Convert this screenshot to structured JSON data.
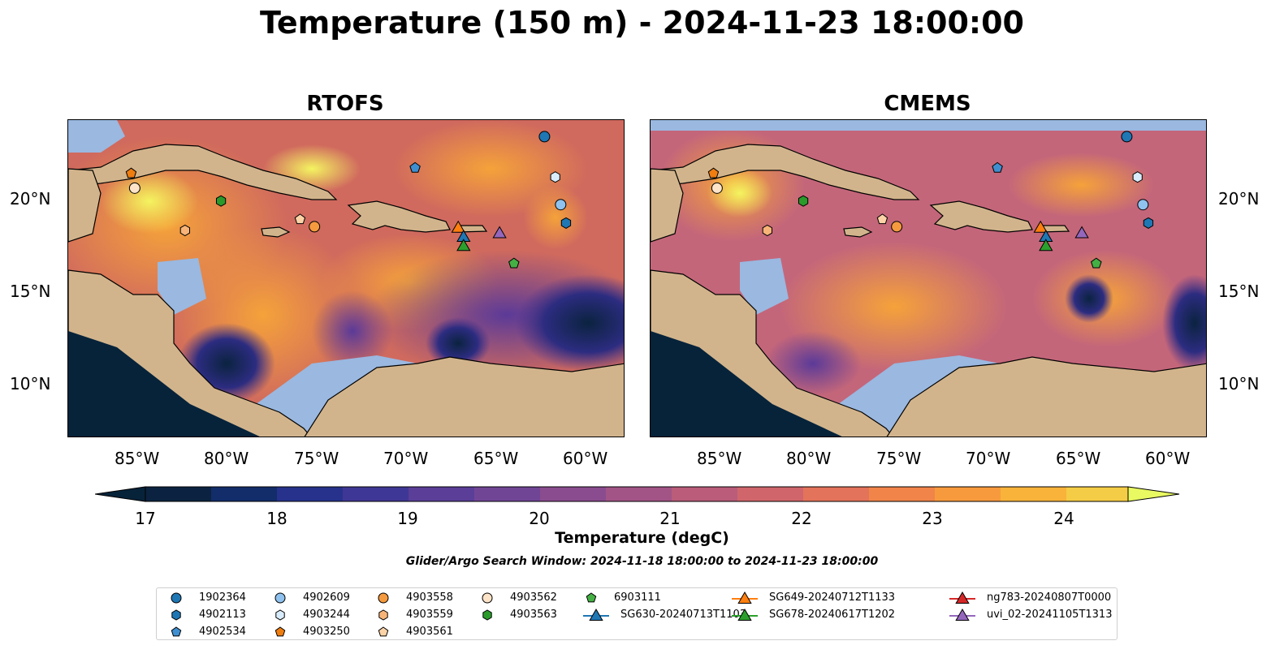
{
  "title": "Temperature (150 m) - 2024-11-23 18:00:00",
  "panels": [
    {
      "title": "RTOFS"
    },
    {
      "title": "CMEMS"
    }
  ],
  "axes": {
    "lon_labels": [
      "85°W",
      "80°W",
      "75°W",
      "70°W",
      "65°W",
      "60°W"
    ],
    "lat_labels": [
      "20°N",
      "15°N",
      "10°N"
    ]
  },
  "colorbar": {
    "label": "Temperature (degC)",
    "ticks": [
      "17",
      "18",
      "19",
      "20",
      "21",
      "22",
      "23",
      "24"
    ],
    "range": [
      16.5,
      24.5
    ],
    "extend": "both",
    "colormap": "thermal"
  },
  "search_window": "Glider/Argo Search Window: 2024-11-18 18:00:00 to 2024-11-23 18:00:00",
  "colors": {
    "land": "#d2b48c",
    "shallow": "#9ab8e0",
    "deep_cold": "#06233a"
  },
  "legend": {
    "items": [
      {
        "label": "1902364",
        "marker": "circle",
        "color": "#1f77b4"
      },
      {
        "label": "4902113",
        "marker": "hexagon",
        "color": "#1f77b4"
      },
      {
        "label": "4902534",
        "marker": "pentagon",
        "color": "#3f8fd0"
      },
      {
        "label": "4902609",
        "marker": "circle",
        "color": "#8fc2ee"
      },
      {
        "label": "4903244",
        "marker": "hexagon",
        "color": "#d8ecfb"
      },
      {
        "label": "4903250",
        "marker": "pentagon",
        "color": "#f07d10"
      },
      {
        "label": "4903558",
        "marker": "circle",
        "color": "#f59a3e"
      },
      {
        "label": "4903559",
        "marker": "hexagon",
        "color": "#f8b478"
      },
      {
        "label": "4903561",
        "marker": "pentagon",
        "color": "#fcd3a7"
      },
      {
        "label": "4903562",
        "marker": "circle",
        "color": "#fde3c8"
      },
      {
        "label": "4903563",
        "marker": "hexagon",
        "color": "#2a9a2a"
      },
      {
        "label": "6903111",
        "marker": "pentagon",
        "color": "#44b044"
      },
      {
        "label": "SG630-20240713T1103",
        "marker": "triangle-line",
        "color": "#1f77b4"
      },
      {
        "label": "SG649-20240712T1133",
        "marker": "triangle-line",
        "color": "#ff7f0e"
      },
      {
        "label": "SG678-20240617T1202",
        "marker": "triangle-line",
        "color": "#2ca02c"
      },
      {
        "label": "ng783-20240807T0000",
        "marker": "triangle-line",
        "color": "#d62728"
      },
      {
        "label": "uvi_02-20241105T1313",
        "marker": "triangle-line",
        "color": "#9467bd"
      }
    ]
  },
  "observations": [
    {
      "id": "1902364",
      "lon": -62.5,
      "lat": 23.4
    },
    {
      "id": "4903244",
      "lon": -61.9,
      "lat": 21.2
    },
    {
      "id": "4902534",
      "lon": -69.7,
      "lat": 21.7
    },
    {
      "id": "4902609",
      "lon": -61.6,
      "lat": 19.7
    },
    {
      "id": "4902113",
      "lon": -61.3,
      "lat": 18.7
    },
    {
      "id": "4903250",
      "lon": -85.5,
      "lat": 21.4
    },
    {
      "id": "4903562",
      "lon": -85.3,
      "lat": 20.6
    },
    {
      "id": "4903563",
      "lon": -80.5,
      "lat": 19.9
    },
    {
      "id": "4903559",
      "lon": -82.5,
      "lat": 18.3
    },
    {
      "id": "4903561",
      "lon": -76.1,
      "lat": 18.9
    },
    {
      "id": "4903558",
      "lon": -75.3,
      "lat": 18.5
    },
    {
      "id": "6903111",
      "lon": -64.2,
      "lat": 16.5
    },
    {
      "id": "SG649-20240712T1133",
      "lon": -67.3,
      "lat": 18.4
    },
    {
      "id": "SG630-20240713T1103",
      "lon": -67.0,
      "lat": 17.9
    },
    {
      "id": "SG678-20240617T1202",
      "lon": -67.0,
      "lat": 17.4
    },
    {
      "id": "uvi_02-20241105T1313",
      "lon": -65.0,
      "lat": 18.1
    }
  ]
}
